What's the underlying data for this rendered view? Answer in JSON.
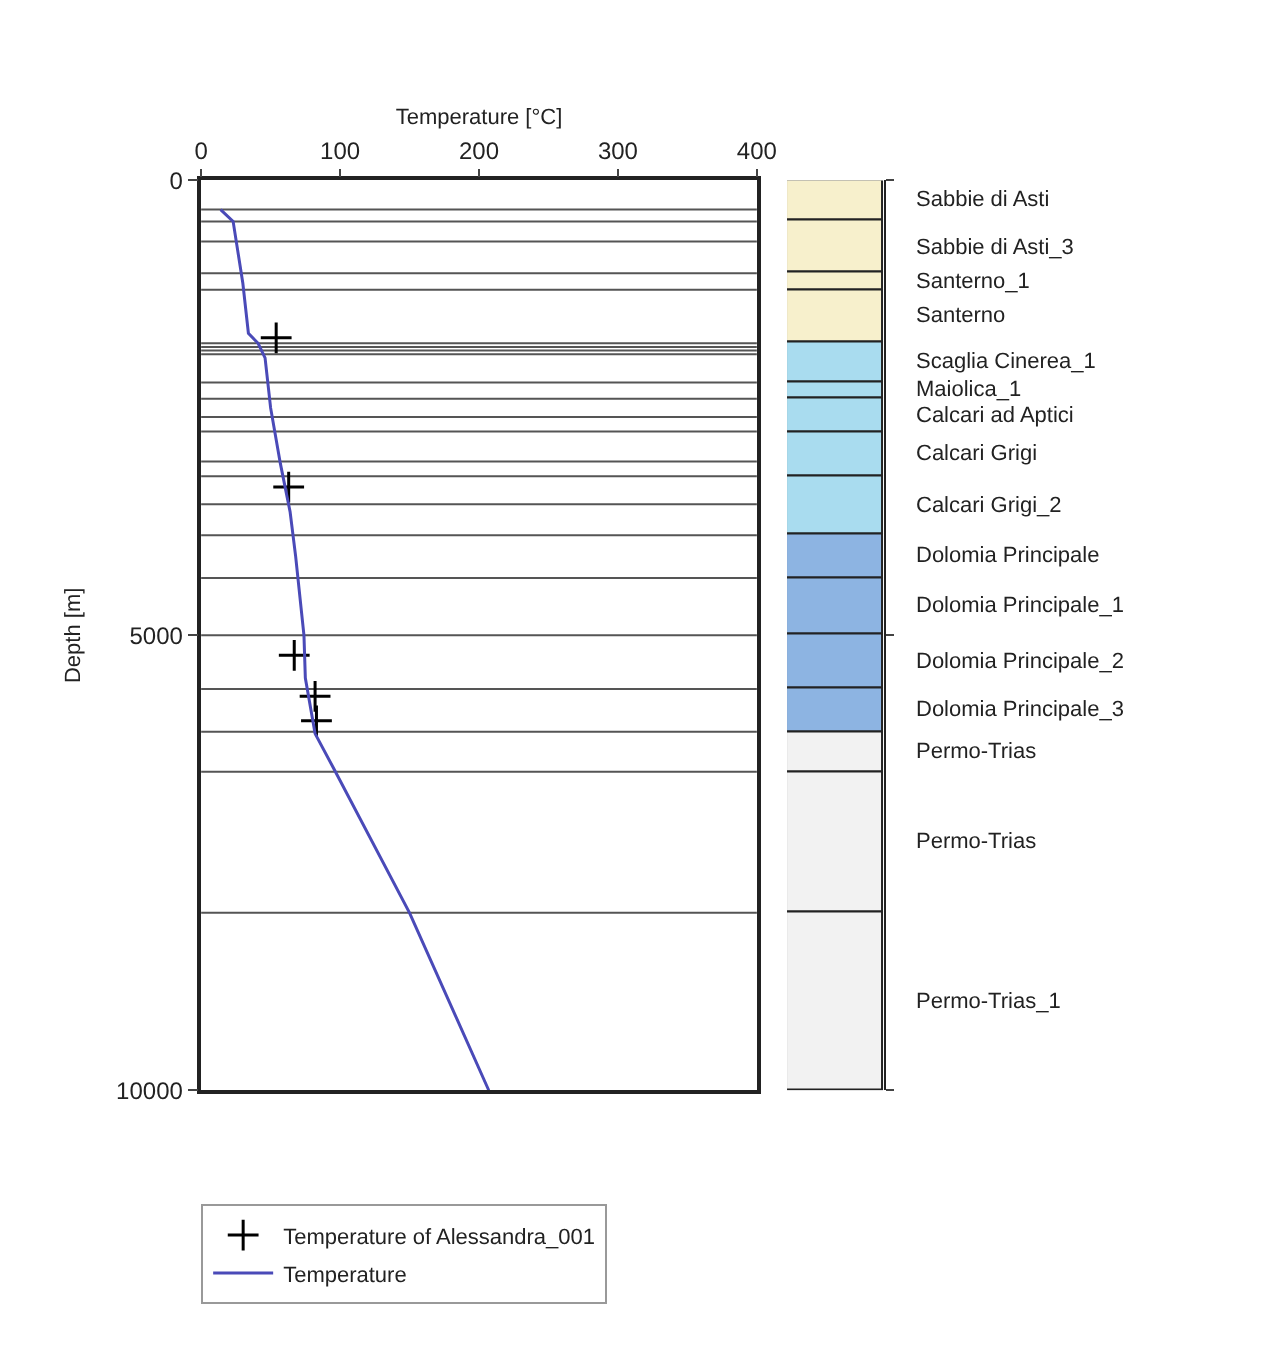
{
  "chart_data": [
    {
      "type": "line",
      "xlabel": "Temperature [°C]",
      "ylabel": "Depth [m]",
      "xlim": [
        0,
        400
      ],
      "xticks": [
        0,
        100,
        200,
        300,
        400
      ],
      "ylim": [
        10000,
        0
      ],
      "yticks": [
        0,
        5000,
        10000
      ],
      "grid": false,
      "legend": "bottom",
      "series": [
        {
          "name": "Temperature of Alessandra_001",
          "type": "scatter",
          "marker": "cross",
          "color": "#000000",
          "x": [
            54,
            63,
            67,
            82,
            83
          ],
          "values": [
            1730,
            3370,
            5220,
            5670,
            5940
          ]
        },
        {
          "name": "Temperature",
          "type": "line",
          "color": "#4a4ab8",
          "x": [
            14,
            23,
            30,
            34,
            41,
            46,
            50,
            57,
            64,
            68,
            74,
            75,
            82,
            96,
            150,
            207
          ],
          "values": [
            320,
            450,
            1130,
            1680,
            1790,
            1950,
            2500,
            3110,
            3640,
            4130,
            5000,
            5470,
            6080,
            6480,
            8050,
            10000
          ]
        }
      ],
      "ref_lines": [
        {
          "axis": "y",
          "value": 320,
          "color": "#555555"
        },
        {
          "axis": "y",
          "value": 450,
          "color": "#555555"
        },
        {
          "axis": "y",
          "value": 670,
          "color": "#555555"
        },
        {
          "axis": "y",
          "value": 1020,
          "color": "#555555"
        },
        {
          "axis": "y",
          "value": 1200,
          "color": "#555555"
        },
        {
          "axis": "y",
          "value": 1790,
          "color": "#555555"
        },
        {
          "axis": "y",
          "value": 1830,
          "color": "#555555"
        },
        {
          "axis": "y",
          "value": 1870,
          "color": "#555555"
        },
        {
          "axis": "y",
          "value": 1910,
          "color": "#555555"
        },
        {
          "axis": "y",
          "value": 2220,
          "color": "#555555"
        },
        {
          "axis": "y",
          "value": 2400,
          "color": "#555555"
        },
        {
          "axis": "y",
          "value": 2600,
          "color": "#555555"
        },
        {
          "axis": "y",
          "value": 2760,
          "color": "#555555"
        },
        {
          "axis": "y",
          "value": 3090,
          "color": "#555555"
        },
        {
          "axis": "y",
          "value": 3250,
          "color": "#555555"
        },
        {
          "axis": "y",
          "value": 3560,
          "color": "#555555"
        },
        {
          "axis": "y",
          "value": 3900,
          "color": "#555555"
        },
        {
          "axis": "y",
          "value": 4370,
          "color": "#555555"
        },
        {
          "axis": "y",
          "value": 5000,
          "color": "#555555"
        },
        {
          "axis": "y",
          "value": 5590,
          "color": "#555555"
        },
        {
          "axis": "y",
          "value": 6060,
          "color": "#555555"
        },
        {
          "axis": "y",
          "value": 6500,
          "color": "#555555"
        },
        {
          "axis": "y",
          "value": 8050,
          "color": "#555555"
        }
      ]
    },
    {
      "type": "bar",
      "stacked": true,
      "categories": [
        null
      ],
      "ylim": [
        10000,
        0
      ],
      "yticks": [
        {
          "value": 0,
          "label": null
        },
        {
          "value": 5000,
          "label": null
        },
        {
          "value": 10000,
          "label": null
        }
      ],
      "tick_labels": false,
      "series": [
        {
          "name": "Sabbie di Asti",
          "color": "#f7f0cc",
          "values": [
            450
          ]
        },
        {
          "name": "Sabbie di Asti_3",
          "color": "#f7f0cc",
          "values": [
            570
          ]
        },
        {
          "name": "Santerno_1",
          "color": "#f7f0cc",
          "values": [
            180
          ]
        },
        {
          "name": "Santerno",
          "color": "#f7f0cc",
          "values": [
            590
          ]
        },
        {
          "name": "Scaglia Cinerea_1",
          "color": "#a9dcef",
          "values": [
            430
          ]
        },
        {
          "name": "Maiolica_1",
          "color": "#a9dcef",
          "values": [
            180
          ]
        },
        {
          "name": "Calcari ad Aptici",
          "color": "#a9dcef",
          "values": [
            360
          ]
        },
        {
          "name": "Calcari Grigi",
          "color": "#a9dcef",
          "values": [
            490
          ]
        },
        {
          "name": "Calcari Grigi_2",
          "color": "#a9dcef",
          "values": [
            650
          ]
        },
        {
          "name": "Dolomia Principale",
          "color": "#8db4e2",
          "values": [
            470
          ]
        },
        {
          "name": "Dolomia Principale_1",
          "color": "#8db4e2",
          "values": [
            630
          ]
        },
        {
          "name": "Dolomia Principale_2",
          "color": "#8db4e2",
          "values": [
            590
          ]
        },
        {
          "name": "Dolomia Principale_3",
          "color": "#8db4e2",
          "values": [
            470
          ]
        },
        {
          "name": "Permo-Trias",
          "color": "#f2f2f2",
          "values": [
            440
          ]
        },
        {
          "name": "Permo-Trias",
          "color": "#f2f2f2",
          "values": [
            1550
          ]
        },
        {
          "name": "Permo-Trias_1",
          "color": "#f2f2f2",
          "values": [
            1950
          ]
        }
      ]
    }
  ]
}
